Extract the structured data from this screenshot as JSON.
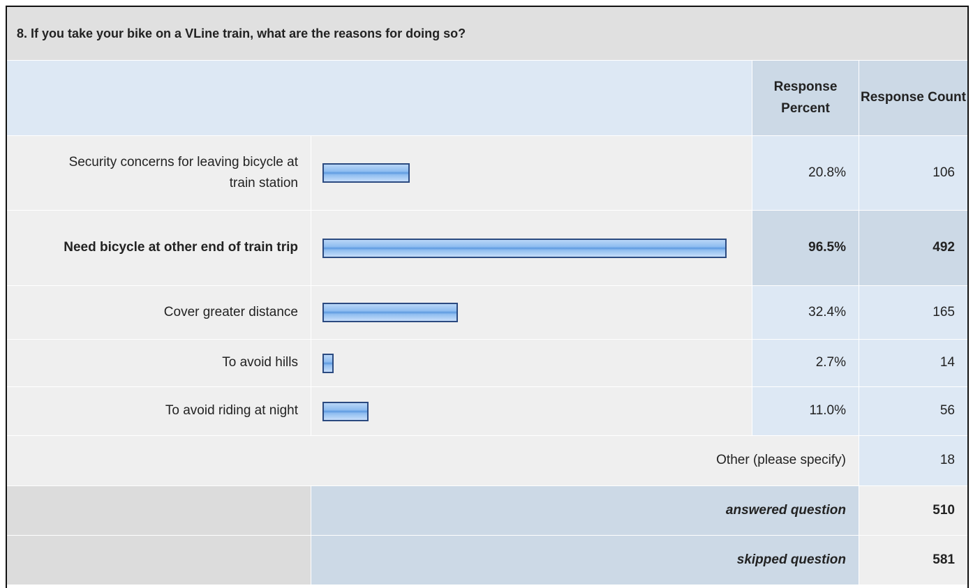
{
  "question": {
    "title": "8. If you take your bike on a VLine train, what are the reasons for doing so?",
    "header": {
      "percent": "Response Percent",
      "count": "Response Count"
    },
    "rows": [
      {
        "label": "Security concerns for leaving bicycle at train station",
        "percent": 20.8,
        "percent_label": "20.8%",
        "count": 106
      },
      {
        "label": "Need bicycle at other end of train trip",
        "percent": 96.5,
        "percent_label": "96.5%",
        "count": 492,
        "highlight": true
      },
      {
        "label": "Cover greater distance",
        "percent": 32.4,
        "percent_label": "32.4%",
        "count": 165
      },
      {
        "label": "To avoid hills",
        "percent": 2.7,
        "percent_label": "2.7%",
        "count": 14
      },
      {
        "label": "To avoid riding at night",
        "percent": 11.0,
        "percent_label": "11.0%",
        "count": 56
      }
    ],
    "other": {
      "label": "Other (please specify)",
      "count": 18
    },
    "answered": {
      "label": "answered question",
      "count": 510
    },
    "skipped": {
      "label": "skipped question",
      "count": 581
    }
  }
}
